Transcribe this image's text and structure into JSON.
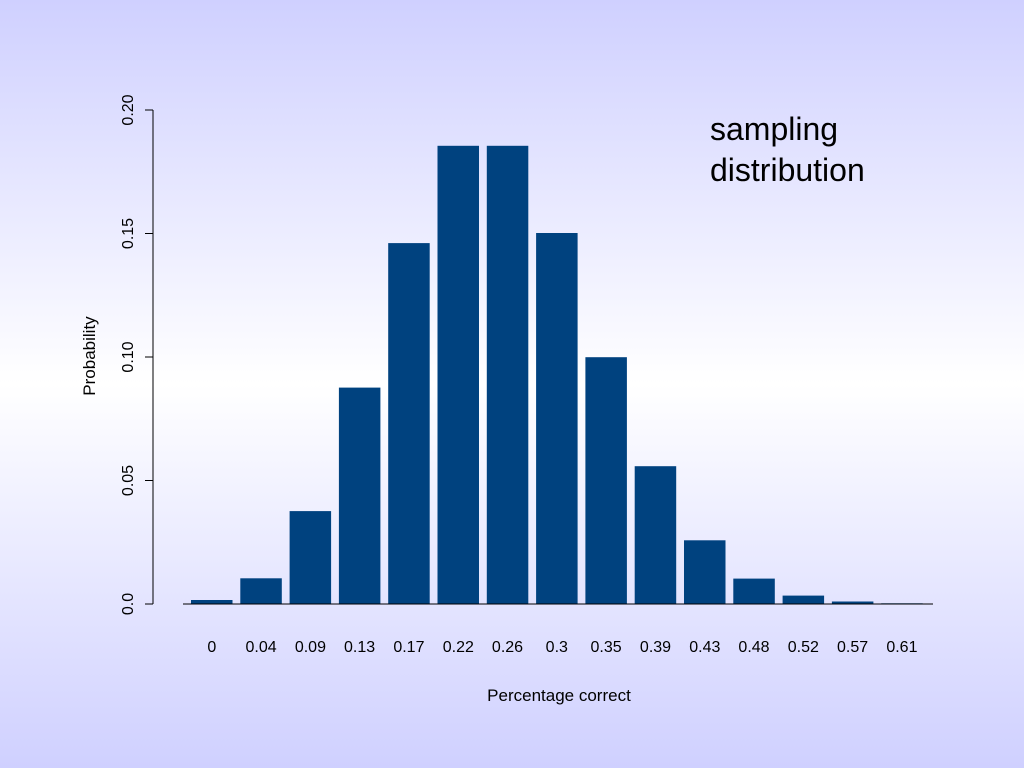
{
  "chart_data": {
    "type": "bar",
    "categories": [
      "0",
      "0.04",
      "0.09",
      "0.13",
      "0.17",
      "0.22",
      "0.26",
      "0.3",
      "0.35",
      "0.39",
      "0.43",
      "0.48",
      "0.52",
      "0.57",
      "0.61"
    ],
    "values": [
      0.0016,
      0.0104,
      0.0376,
      0.0876,
      0.1461,
      0.1855,
      0.1855,
      0.1502,
      0.0999,
      0.0558,
      0.0258,
      0.0103,
      0.0034,
      0.001,
      0.0003
    ],
    "xlabel": "Percentage correct",
    "ylabel": "Probability",
    "ylim": [
      0,
      0.2
    ],
    "yticks": [
      0,
      0.05,
      0.1,
      0.15,
      0.2
    ],
    "ytick_labels": [
      "0.0",
      "0.05",
      "0.10",
      "0.15",
      "0.20"
    ],
    "annotation": [
      "sampling",
      "distribution"
    ],
    "bar_color": "#00427f",
    "grid": false
  }
}
